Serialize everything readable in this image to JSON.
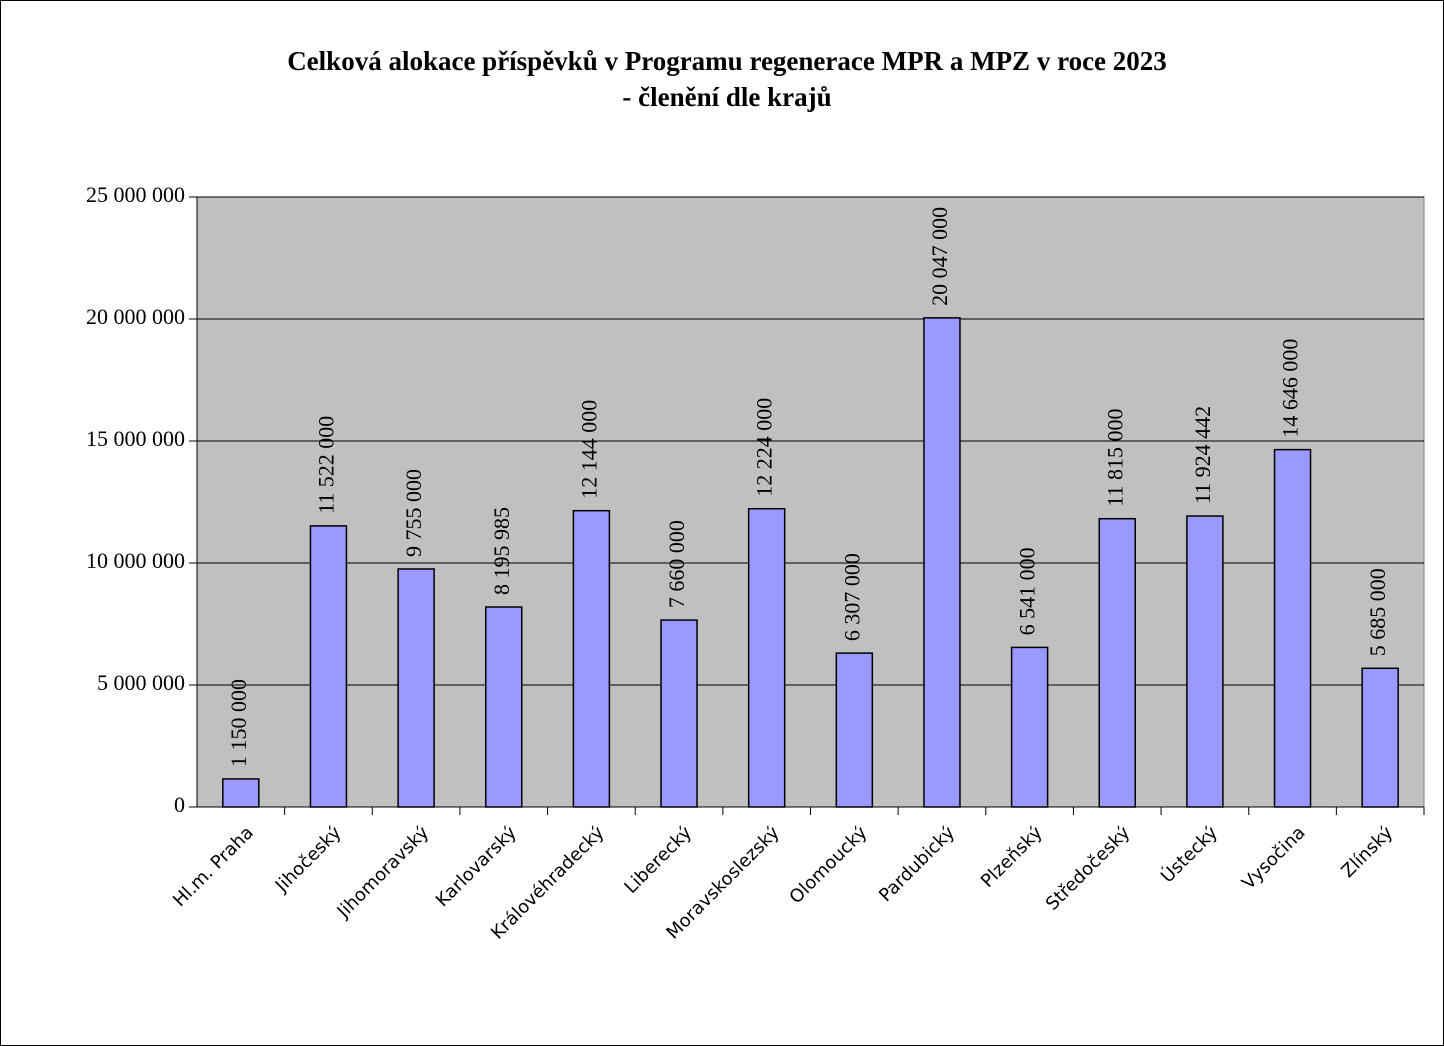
{
  "chart_data": {
    "type": "bar",
    "title": [
      "Celková alokace příspěvků v Programu regenerace MPR a MPZ v roce 2023",
      "- členění dle krajů"
    ],
    "categories": [
      "Hl.m. Praha",
      "Jihočeský",
      "Jihomoravský",
      "Karlovarský",
      "Královéhradecký",
      "Liberecký",
      "Moravskoslezský",
      "Olomoucký",
      "Pardubický",
      "Plzeňský",
      "Středočeský",
      "Ústecký",
      "Vysočina",
      "Zlínský"
    ],
    "values": [
      1150000,
      11522000,
      9755000,
      8195985,
      12144000,
      7660000,
      12224000,
      6307000,
      20047000,
      6541000,
      11815000,
      11924442,
      14646000,
      5685000
    ],
    "value_labels": [
      "1 150 000",
      "11 522 000",
      "9 755 000",
      "8 195 985",
      "12 144 000",
      "7 660 000",
      "12 224 000",
      "6 307 000",
      "20 047 000",
      "6 541 000",
      "11 815 000",
      "11 924 442",
      "14 646 000",
      "5 685 000"
    ],
    "color": "#9999ff",
    "ylim": [
      0,
      25000000
    ],
    "yticks": [
      {
        "value": 0,
        "label": "0"
      },
      {
        "value": 5000000,
        "label": "5 000 000"
      },
      {
        "value": 10000000,
        "label": "10 000 000"
      },
      {
        "value": 15000000,
        "label": "15 000 000"
      },
      {
        "value": 20000000,
        "label": "20 000 000"
      },
      {
        "value": 25000000,
        "label": "25 000 000"
      }
    ],
    "grid": true,
    "plot_background": "#c0c0c0"
  }
}
